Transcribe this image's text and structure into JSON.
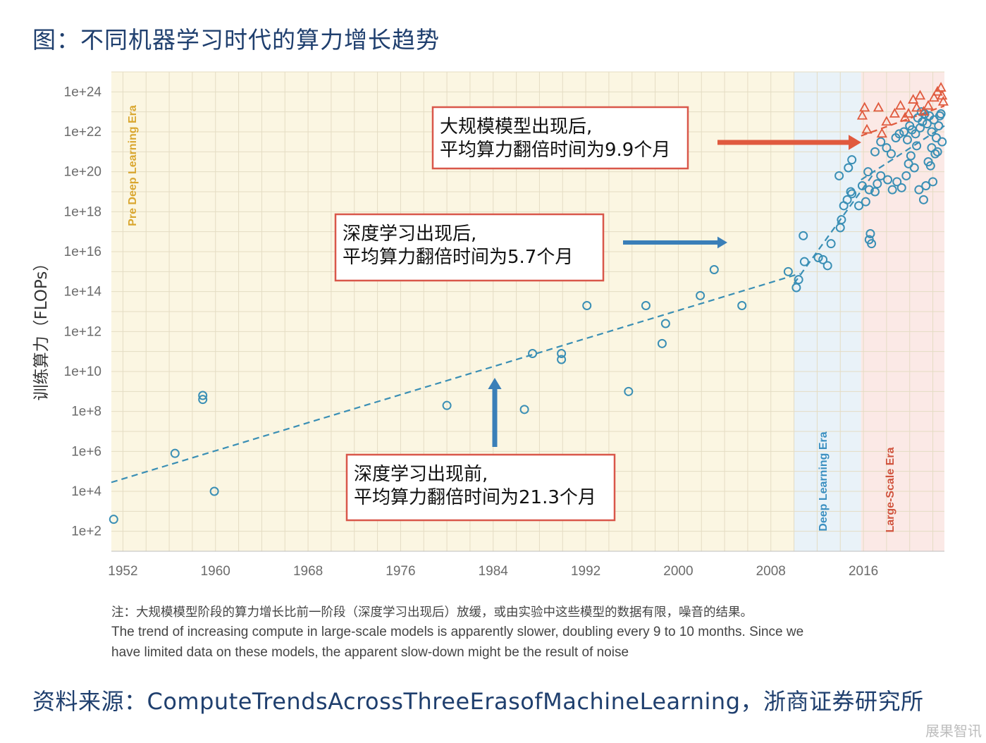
{
  "title": "图：不同机器学习时代的算力增长趋势",
  "chart_data": {
    "type": "scatter",
    "ylabel": "训练算力（FLOPs）",
    "xlabel": "",
    "y_scale": "log10",
    "xlim": [
      1951,
      2023
    ],
    "ylim_exponent": [
      1,
      25
    ],
    "x_ticks": [
      1952,
      1960,
      1968,
      1976,
      1984,
      1992,
      2000,
      2008,
      2016
    ],
    "y_ticks": [
      "1e+2",
      "1e+4",
      "1e+6",
      "1e+8",
      "1e+10",
      "1e+12",
      "1e+14",
      "1e+16",
      "1e+18",
      "1e+20",
      "1e+22",
      "1e+24"
    ],
    "y_tick_exponents": [
      2,
      4,
      6,
      8,
      10,
      12,
      14,
      16,
      18,
      20,
      22,
      24
    ],
    "grid": true,
    "eras": [
      {
        "label": "Pre Deep Learning Era",
        "from": 1951,
        "to": 2010,
        "color": "#fbf6e2",
        "label_color": "#d9a62e"
      },
      {
        "label": "Deep Learning Era",
        "from": 2010,
        "to": 2015.8,
        "color": "#e9f2f8",
        "label_color": "#3a8fc0"
      },
      {
        "label": "Large-Scale Era",
        "from": 2015.8,
        "to": 2023,
        "color": "#fbe9e6",
        "label_color": "#d0533d"
      }
    ],
    "series": [
      {
        "marker": "circle",
        "color": "#3a8fb5",
        "points": [
          [
            1951.2,
            2.6
          ],
          [
            1956.5,
            5.9
          ],
          [
            1958.9,
            8.6
          ],
          [
            1958.9,
            8.8
          ],
          [
            1959.9,
            4.0
          ],
          [
            1980.0,
            8.3
          ],
          [
            1986.7,
            8.1
          ],
          [
            1987.4,
            10.9
          ],
          [
            1989.9,
            10.9
          ],
          [
            1989.9,
            10.6
          ],
          [
            1992.1,
            13.3
          ],
          [
            1995.7,
            9.0
          ],
          [
            1997.2,
            13.3
          ],
          [
            1998.6,
            11.4
          ],
          [
            1998.9,
            12.4
          ],
          [
            2001.9,
            13.8
          ],
          [
            2003.1,
            15.1
          ],
          [
            2005.5,
            13.3
          ],
          [
            2009.5,
            15.0
          ],
          [
            2010.2,
            14.2
          ],
          [
            2010.4,
            14.6
          ],
          [
            2010.8,
            16.8
          ],
          [
            2010.9,
            15.5
          ],
          [
            2012.1,
            15.7
          ],
          [
            2012.5,
            15.6
          ],
          [
            2012.9,
            15.3
          ],
          [
            2013.2,
            16.4
          ],
          [
            2014.0,
            17.2
          ],
          [
            2014.1,
            17.6
          ],
          [
            2014.3,
            18.3
          ],
          [
            2014.6,
            18.6
          ],
          [
            2014.9,
            19.0
          ],
          [
            2015.0,
            18.9
          ],
          [
            2015.6,
            18.3
          ],
          [
            2015.9,
            19.3
          ],
          [
            2016.2,
            18.5
          ],
          [
            2016.5,
            19.1
          ],
          [
            2017.0,
            19.0
          ],
          [
            2016.4,
            20.0
          ],
          [
            2017.2,
            19.4
          ],
          [
            2017.5,
            19.8
          ],
          [
            2018.1,
            19.6
          ],
          [
            2018.5,
            19.1
          ],
          [
            2018.9,
            19.5
          ],
          [
            2019.3,
            19.2
          ],
          [
            2019.7,
            19.8
          ],
          [
            2019.9,
            20.4
          ],
          [
            2020.1,
            20.8
          ],
          [
            2020.4,
            20.2
          ],
          [
            2020.6,
            21.3
          ],
          [
            2020.8,
            19.1
          ],
          [
            2021.2,
            18.6
          ],
          [
            2017.0,
            21.0
          ],
          [
            2017.5,
            21.5
          ],
          [
            2018.0,
            21.2
          ],
          [
            2018.4,
            20.9
          ],
          [
            2018.8,
            21.7
          ],
          [
            2019.1,
            21.9
          ],
          [
            2019.5,
            22.0
          ],
          [
            2019.8,
            21.6
          ],
          [
            2020.0,
            22.3
          ],
          [
            2020.2,
            22.1
          ],
          [
            2020.5,
            21.9
          ],
          [
            2020.7,
            22.7
          ],
          [
            2020.9,
            22.2
          ],
          [
            2021.1,
            22.5
          ],
          [
            2021.3,
            22.9
          ],
          [
            2021.5,
            22.4
          ],
          [
            2021.7,
            22.8
          ],
          [
            2021.9,
            22.0
          ],
          [
            2022.1,
            22.6
          ],
          [
            2022.3,
            21.7
          ],
          [
            2022.5,
            22.3
          ],
          [
            2022.6,
            22.8
          ],
          [
            2022.8,
            21.5
          ],
          [
            2022.2,
            20.9
          ],
          [
            2021.6,
            20.5
          ],
          [
            2021.8,
            20.3
          ],
          [
            2022.0,
            19.5
          ],
          [
            2016.5,
            16.6
          ],
          [
            2016.6,
            16.9
          ],
          [
            2016.7,
            16.4
          ],
          [
            2021.4,
            19.3
          ],
          [
            2021.9,
            21.2
          ],
          [
            2022.4,
            21.0
          ],
          [
            2015.0,
            20.6
          ],
          [
            2014.7,
            20.2
          ],
          [
            2013.9,
            19.8
          ],
          [
            2022.7,
            22.9
          ],
          [
            2021.0,
            23.0
          ]
        ]
      },
      {
        "marker": "triangle",
        "color": "#e05a3e",
        "points": [
          [
            2015.9,
            22.8
          ],
          [
            2016.1,
            23.2
          ],
          [
            2017.3,
            23.2
          ],
          [
            2018.0,
            22.5
          ],
          [
            2018.7,
            22.9
          ],
          [
            2019.2,
            23.3
          ],
          [
            2019.6,
            22.7
          ],
          [
            2020.3,
            23.6
          ],
          [
            2020.9,
            23.8
          ],
          [
            2021.6,
            23.3
          ],
          [
            2022.1,
            23.7
          ],
          [
            2022.4,
            24.0
          ],
          [
            2022.7,
            24.2
          ],
          [
            2022.8,
            23.8
          ],
          [
            2021.2,
            23.0
          ],
          [
            2020.6,
            23.2
          ],
          [
            2019.9,
            22.9
          ],
          [
            2022.9,
            23.5
          ],
          [
            2016.3,
            22.1
          ],
          [
            2017.6,
            21.9
          ]
        ]
      }
    ],
    "trends": [
      {
        "style": "dashed",
        "color": "#3a8fb5",
        "from": [
          1951,
          4.45
        ],
        "to": [
          2010.5,
          14.9
        ]
      },
      {
        "style": "dashed",
        "color": "#3a8fb5",
        "from": [
          2010,
          14.4
        ],
        "to": [
          2017,
          20.0
        ]
      },
      {
        "style": "dashed",
        "color": "#e05a3e",
        "from": [
          2015.8,
          21.8
        ],
        "to": [
          2023,
          23.3
        ]
      },
      {
        "style": "dashed",
        "color": "#3a8fb5",
        "from": [
          2015.8,
          19.6
        ],
        "to": [
          2023,
          22.3
        ]
      }
    ],
    "annotations": [
      {
        "id": "large-scale",
        "lines": [
          "大规模模型出现后,",
          "平均算力翻倍时间为9.9个月"
        ]
      },
      {
        "id": "deep-learning",
        "lines": [
          "深度学习出现后,",
          "平均算力翻倍时间为5.7个月"
        ]
      },
      {
        "id": "pre-deep",
        "lines": [
          "深度学习出现前,",
          "平均算力翻倍时间为21.3个月"
        ]
      }
    ]
  },
  "notes": {
    "cn": "注：大规模模型阶段的算力增长比前一阶段（深度学习出现后）放缓，或由实验中这些模型的数据有限，噪音的结果。",
    "en_line1": "The trend of increasing compute in large-scale models is apparently slower, doubling every 9 to 10 months. Since we",
    "en_line2": "have limited data on these models, the apparent slow-down might be the result of noise"
  },
  "source": "资料来源：ComputeTrendsAcrossThreeErasofMachineLearning，浙商证券研究所",
  "watermark": "展果智讯",
  "colors": {
    "title": "#1f3f6e",
    "blue_point": "#3a8fb5",
    "red_point": "#e05a3e",
    "annotation_border": "#d9574a",
    "arrow_red": "#e05a3e",
    "arrow_blue": "#3a7fb8"
  }
}
